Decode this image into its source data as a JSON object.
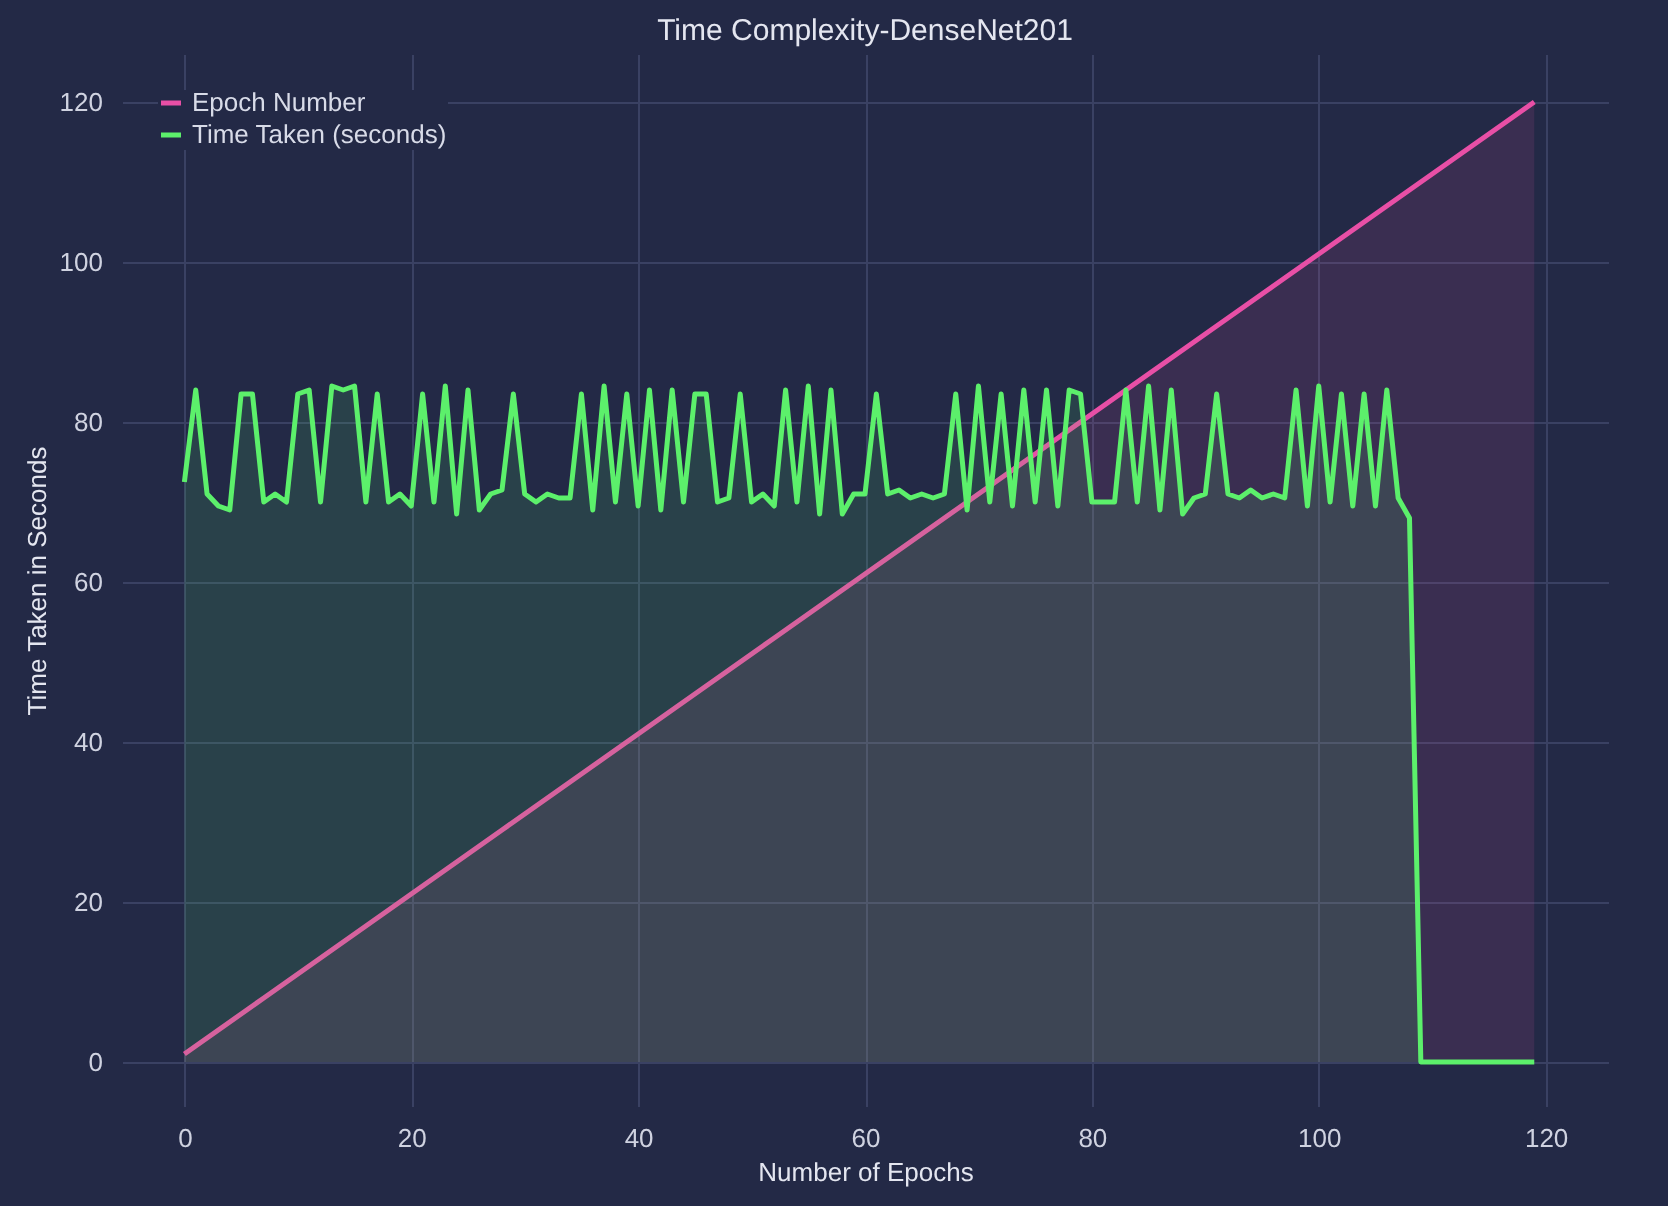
{
  "chart_data": {
    "type": "area",
    "title": "Time Complexity-DenseNet201",
    "xlabel": "Number of Epochs",
    "ylabel": "Time Taken in Seconds",
    "x": [
      0,
      1,
      2,
      3,
      4,
      5,
      6,
      7,
      8,
      9,
      10,
      11,
      12,
      13,
      14,
      15,
      16,
      17,
      18,
      19,
      20,
      21,
      22,
      23,
      24,
      25,
      26,
      27,
      28,
      29,
      30,
      31,
      32,
      33,
      34,
      35,
      36,
      37,
      38,
      39,
      40,
      41,
      42,
      43,
      44,
      45,
      46,
      47,
      48,
      49,
      50,
      51,
      52,
      53,
      54,
      55,
      56,
      57,
      58,
      59,
      60,
      61,
      62,
      63,
      64,
      65,
      66,
      67,
      68,
      69,
      70,
      71,
      72,
      73,
      74,
      75,
      76,
      77,
      78,
      79,
      80,
      81,
      82,
      83,
      84,
      85,
      86,
      87,
      88,
      89,
      90,
      91,
      92,
      93,
      94,
      95,
      96,
      97,
      98,
      99,
      100,
      101,
      102,
      103,
      104,
      105,
      106,
      107,
      108,
      109,
      110,
      111,
      112,
      113,
      114,
      115,
      116,
      117,
      118,
      119
    ],
    "series": [
      {
        "name": "Epoch Number",
        "color": "#e84fa6",
        "values": [
          1,
          2,
          3,
          4,
          5,
          6,
          7,
          8,
          9,
          10,
          11,
          12,
          13,
          14,
          15,
          16,
          17,
          18,
          19,
          20,
          21,
          22,
          23,
          24,
          25,
          26,
          27,
          28,
          29,
          30,
          31,
          32,
          33,
          34,
          35,
          36,
          37,
          38,
          39,
          40,
          41,
          42,
          43,
          44,
          45,
          46,
          47,
          48,
          49,
          50,
          51,
          52,
          53,
          54,
          55,
          56,
          57,
          58,
          59,
          60,
          61,
          62,
          63,
          64,
          65,
          66,
          67,
          68,
          69,
          70,
          71,
          72,
          73,
          74,
          75,
          76,
          77,
          78,
          79,
          80,
          81,
          82,
          83,
          84,
          85,
          86,
          87,
          88,
          89,
          90,
          91,
          92,
          93,
          94,
          95,
          96,
          97,
          98,
          99,
          100,
          101,
          102,
          103,
          104,
          105,
          106,
          107,
          108,
          109,
          110,
          111,
          112,
          113,
          114,
          115,
          116,
          117,
          118,
          119,
          120
        ]
      },
      {
        "name": "Time Taken (seconds)",
        "color": "#5cf06b",
        "values": [
          72.5,
          84,
          71,
          69.5,
          69,
          83.5,
          83.5,
          70,
          71,
          70,
          83.5,
          84,
          70,
          84.5,
          84,
          84.5,
          70,
          83.5,
          70,
          71,
          69.5,
          83.5,
          70,
          84.5,
          68.5,
          84,
          69,
          71,
          71.5,
          83.5,
          71,
          70,
          71,
          70.5,
          70.5,
          83.5,
          69,
          84.5,
          70,
          83.5,
          69.5,
          84,
          69,
          84,
          70,
          83.5,
          83.5,
          70,
          70.5,
          83.5,
          70,
          71,
          69.5,
          84,
          70,
          84.5,
          68.5,
          84,
          68.5,
          71,
          71,
          83.5,
          71,
          71.5,
          70.5,
          71,
          70.5,
          71,
          83.5,
          69,
          84.5,
          70,
          83.5,
          69.5,
          84,
          70,
          84,
          69.5,
          84,
          83.5,
          70,
          70,
          70,
          84,
          70,
          84.5,
          69,
          84,
          68.5,
          70.5,
          71,
          83.5,
          71,
          70.5,
          71.5,
          70.5,
          71,
          70.5,
          84,
          69.5,
          84.5,
          70,
          83.5,
          69.5,
          83.5,
          69.5,
          84,
          70.5,
          68,
          0,
          0,
          0,
          0,
          0,
          0,
          0,
          0,
          0,
          0,
          0
        ]
      }
    ],
    "xlim": [
      -5.5,
      125.5
    ],
    "ylim": [
      -5.5,
      126
    ],
    "xticks": [
      0,
      20,
      40,
      60,
      80,
      100,
      120
    ],
    "yticks": [
      0,
      20,
      40,
      60,
      80,
      100,
      120
    ],
    "grid": true,
    "legend": "top left"
  }
}
